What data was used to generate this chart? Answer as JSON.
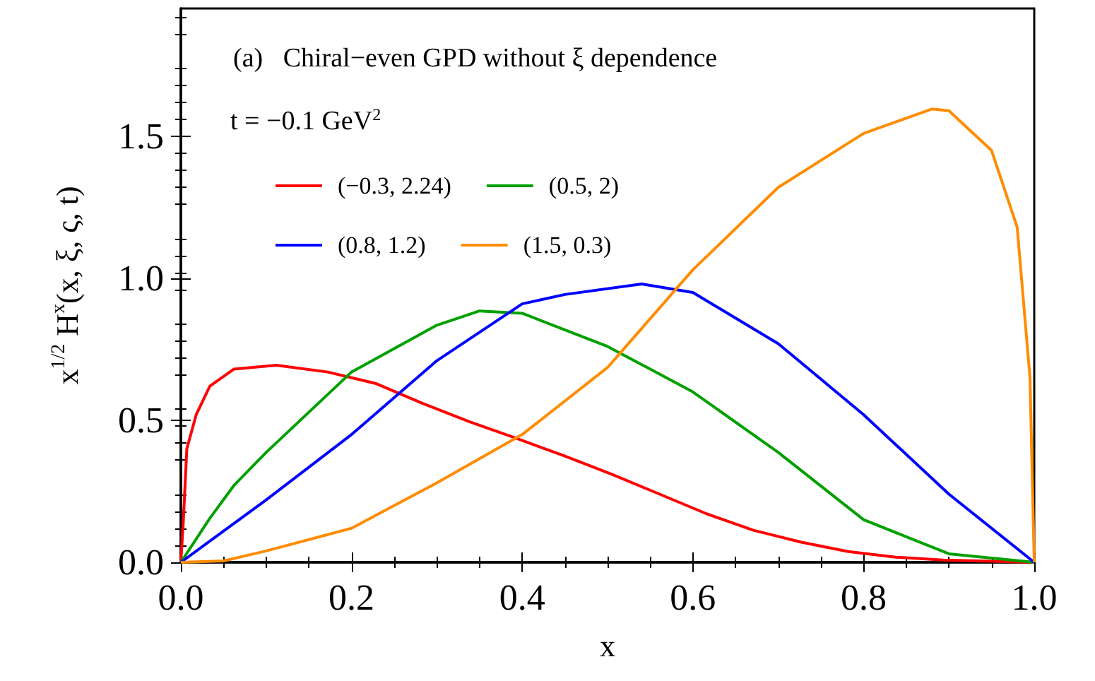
{
  "chart_data": {
    "type": "line",
    "title": "(a)   Chiral−even GPD without ξ dependence",
    "legend_title": "t = −0.1 GeV$^{2}$",
    "xlabel": "x",
    "ylabel": "x$^{1/2}$ H$^{x}$(x, ξ, ς, t)",
    "xlim": [
      0,
      1
    ],
    "ylim": [
      0,
      1.95
    ],
    "xticks": [
      {
        "value": 0,
        "label": "0.0"
      },
      {
        "value": 0.2,
        "label": "0.2"
      },
      {
        "value": 0.4,
        "label": "0.4"
      },
      {
        "value": 0.6,
        "label": "0.6"
      },
      {
        "value": 0.8,
        "label": "0.8"
      },
      {
        "value": 1,
        "label": "1.0"
      }
    ],
    "yticks": [
      {
        "value": 0,
        "label": "0.0"
      },
      {
        "value": 0.5,
        "label": "0.5"
      },
      {
        "value": 1,
        "label": "1.0"
      },
      {
        "value": 1.5,
        "label": "1.5"
      }
    ],
    "legend": "top left",
    "grid": false,
    "marker": "none",
    "line_style": "solid",
    "series": [
      {
        "name": "(−0.3, 2.24)",
        "color": "#ff0000",
        "x": [
          0,
          0.003,
          0.007,
          0.018,
          0.034,
          0.062,
          0.112,
          0.172,
          0.228,
          0.283,
          0.338,
          0.393,
          0.449,
          0.505,
          0.561,
          0.616,
          0.671,
          0.727,
          0.782,
          0.838,
          0.893,
          1
        ],
        "values": [
          0,
          0.15,
          0.4,
          0.52,
          0.62,
          0.68,
          0.694,
          0.67,
          0.63,
          0.56,
          0.495,
          0.437,
          0.375,
          0.31,
          0.24,
          0.171,
          0.113,
          0.071,
          0.038,
          0.018,
          0.008,
          0
        ]
      },
      {
        "name": "(0.5, 2)",
        "color": "#00a000",
        "x": [
          0,
          0.034,
          0.062,
          0.1,
          0.2,
          0.3,
          0.35,
          0.4,
          0.5,
          0.55,
          0.6,
          0.7,
          0.8,
          0.9,
          1
        ],
        "values": [
          0,
          0.155,
          0.27,
          0.387,
          0.67,
          0.835,
          0.885,
          0.877,
          0.76,
          0.68,
          0.6,
          0.387,
          0.15,
          0.03,
          0
        ]
      },
      {
        "name": "(0.8, 1.2)",
        "color": "#0000ff",
        "x": [
          0,
          0.1,
          0.2,
          0.3,
          0.4,
          0.45,
          0.54,
          0.6,
          0.7,
          0.8,
          0.9,
          1
        ],
        "values": [
          0,
          0.22,
          0.45,
          0.71,
          0.91,
          0.943,
          0.98,
          0.95,
          0.77,
          0.52,
          0.24,
          0
        ]
      },
      {
        "name": "(1.5, 0.3)",
        "color": "#ff8c00",
        "x": [
          0,
          0.05,
          0.1,
          0.2,
          0.3,
          0.4,
          0.5,
          0.6,
          0.7,
          0.8,
          0.88,
          0.9,
          0.95,
          0.98,
          0.995,
          1
        ],
        "values": [
          0,
          0.005,
          0.04,
          0.12,
          0.28,
          0.45,
          0.686,
          1.03,
          1.32,
          1.51,
          1.596,
          1.59,
          1.45,
          1.18,
          0.65,
          0
        ]
      }
    ]
  }
}
